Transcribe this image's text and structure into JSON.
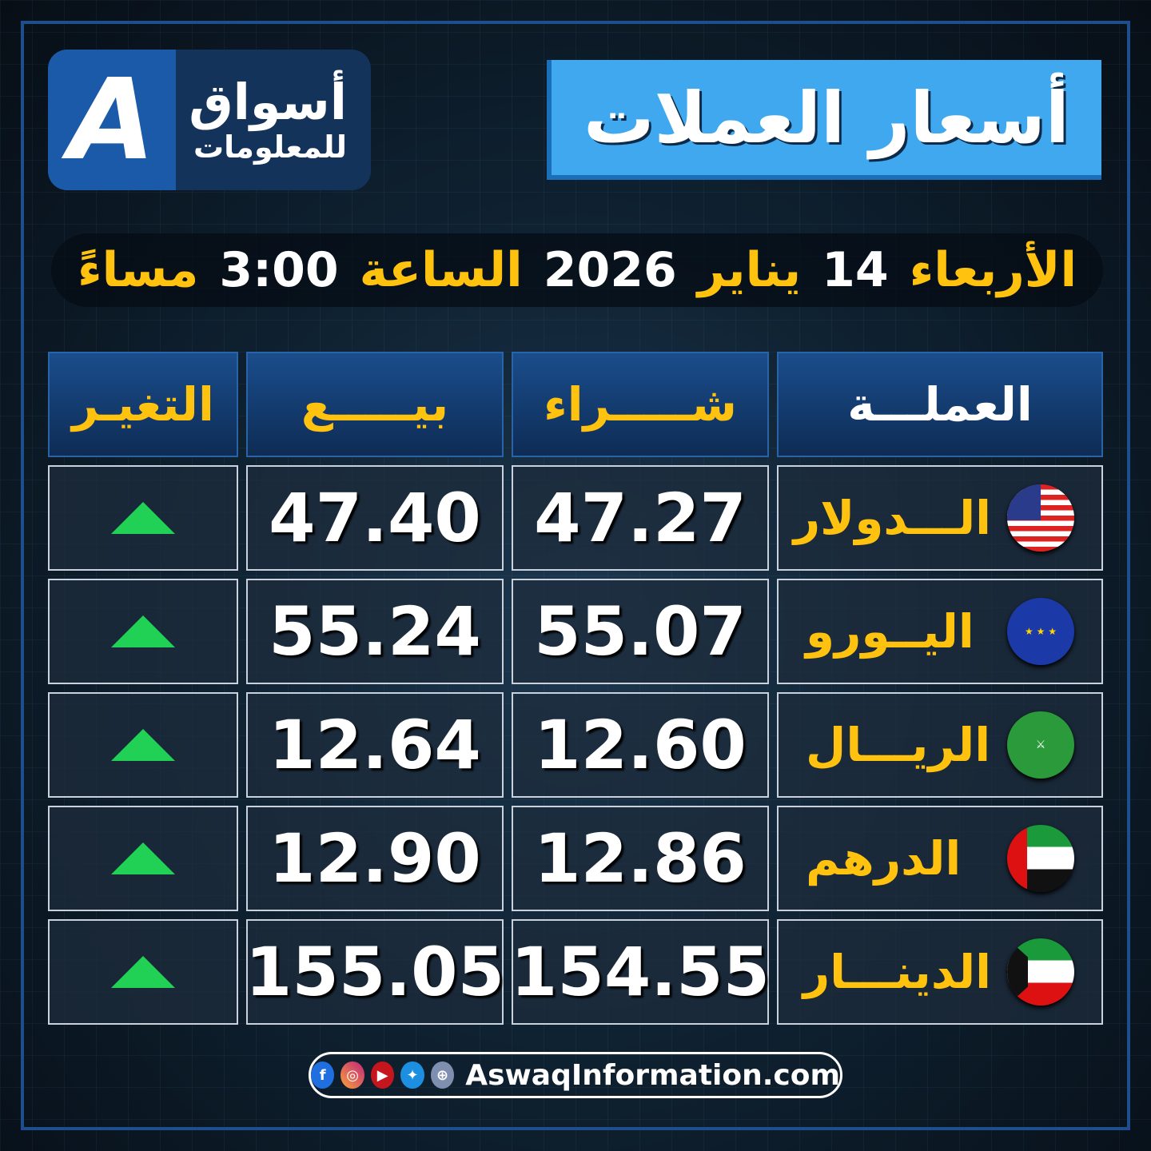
{
  "logo": {
    "mark": "A",
    "line1": "أسواق",
    "line2": "للمعلومات"
  },
  "title": "أسعار العملات",
  "date": {
    "day": "الأربعاء",
    "date_num": "14",
    "month": "يناير",
    "year": "2026",
    "hour_label": "الساعة",
    "time": "3:00",
    "period": "مساءً"
  },
  "table": {
    "headers": {
      "currency": "العملـــة",
      "buy": "شـــــراء",
      "sell": "بيـــــع",
      "change": "التغيـر"
    },
    "rows": [
      {
        "currency": "الـــدولار",
        "flag": "us-flag",
        "buy": "47.27",
        "sell": "47.40",
        "change": "up"
      },
      {
        "currency": "اليــورو",
        "flag": "eu-flag",
        "buy": "55.07",
        "sell": "55.24",
        "change": "up"
      },
      {
        "currency": "الريـــال",
        "flag": "sa-flag",
        "buy": "12.60",
        "sell": "12.64",
        "change": "up"
      },
      {
        "currency": "الدرهم",
        "flag": "ae-flag",
        "buy": "12.86",
        "sell": "12.90",
        "change": "up"
      },
      {
        "currency": "الدينـــار",
        "flag": "kw-flag",
        "buy": "154.55",
        "sell": "155.05",
        "change": "up"
      }
    ]
  },
  "footer": {
    "url": "AswaqInformation.com",
    "icons": [
      "facebook-icon",
      "instagram-icon",
      "youtube-icon",
      "twitter-icon",
      "globe-icon"
    ]
  },
  "colors": {
    "accent": "#ffc20e",
    "title_bg": "#3fa8ef",
    "up": "#20d155",
    "frame": "#1d4f8f"
  }
}
